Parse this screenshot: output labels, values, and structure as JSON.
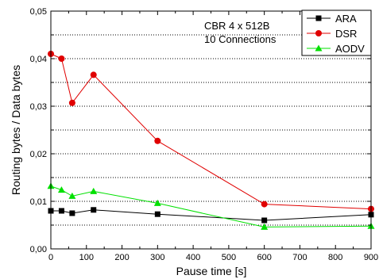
{
  "chart_data": {
    "type": "line",
    "title": "",
    "xlabel": "Pause time [s]",
    "ylabel": "Routing bytes / Data bytes",
    "xlim": [
      0,
      900
    ],
    "ylim": [
      0,
      0.05
    ],
    "x_ticks": [
      0,
      100,
      200,
      300,
      400,
      500,
      600,
      700,
      800,
      900
    ],
    "y_ticks": [
      0.0,
      0.01,
      0.02,
      0.03,
      0.04,
      0.05
    ],
    "x_tick_labels": [
      "0",
      "100",
      "200",
      "300",
      "400",
      "500",
      "600",
      "700",
      "800",
      "900"
    ],
    "y_tick_labels": [
      "0,00",
      "0,01",
      "0,02",
      "0,03",
      "0,04",
      "0,05"
    ],
    "grid": "horizontal dotted",
    "legend_position": "top-right",
    "annotations": [
      "CBR 4 x 512B",
      "10 Connections"
    ],
    "series": [
      {
        "name": "ARA",
        "color": "#000000",
        "marker": "square",
        "x": [
          0,
          30,
          60,
          120,
          300,
          600,
          900
        ],
        "y": [
          0.008,
          0.008,
          0.0075,
          0.0082,
          0.0073,
          0.006,
          0.0072
        ]
      },
      {
        "name": "DSR",
        "color": "#e00000",
        "marker": "circle",
        "x": [
          0,
          30,
          60,
          120,
          300,
          600,
          900
        ],
        "y": [
          0.041,
          0.04,
          0.0307,
          0.0366,
          0.0227,
          0.0094,
          0.0084
        ]
      },
      {
        "name": "AODV",
        "color": "#00e000",
        "marker": "triangle",
        "x": [
          0,
          30,
          60,
          120,
          300,
          600,
          900
        ],
        "y": [
          0.0132,
          0.0124,
          0.0111,
          0.0121,
          0.0096,
          0.0046,
          0.0048
        ]
      }
    ]
  }
}
